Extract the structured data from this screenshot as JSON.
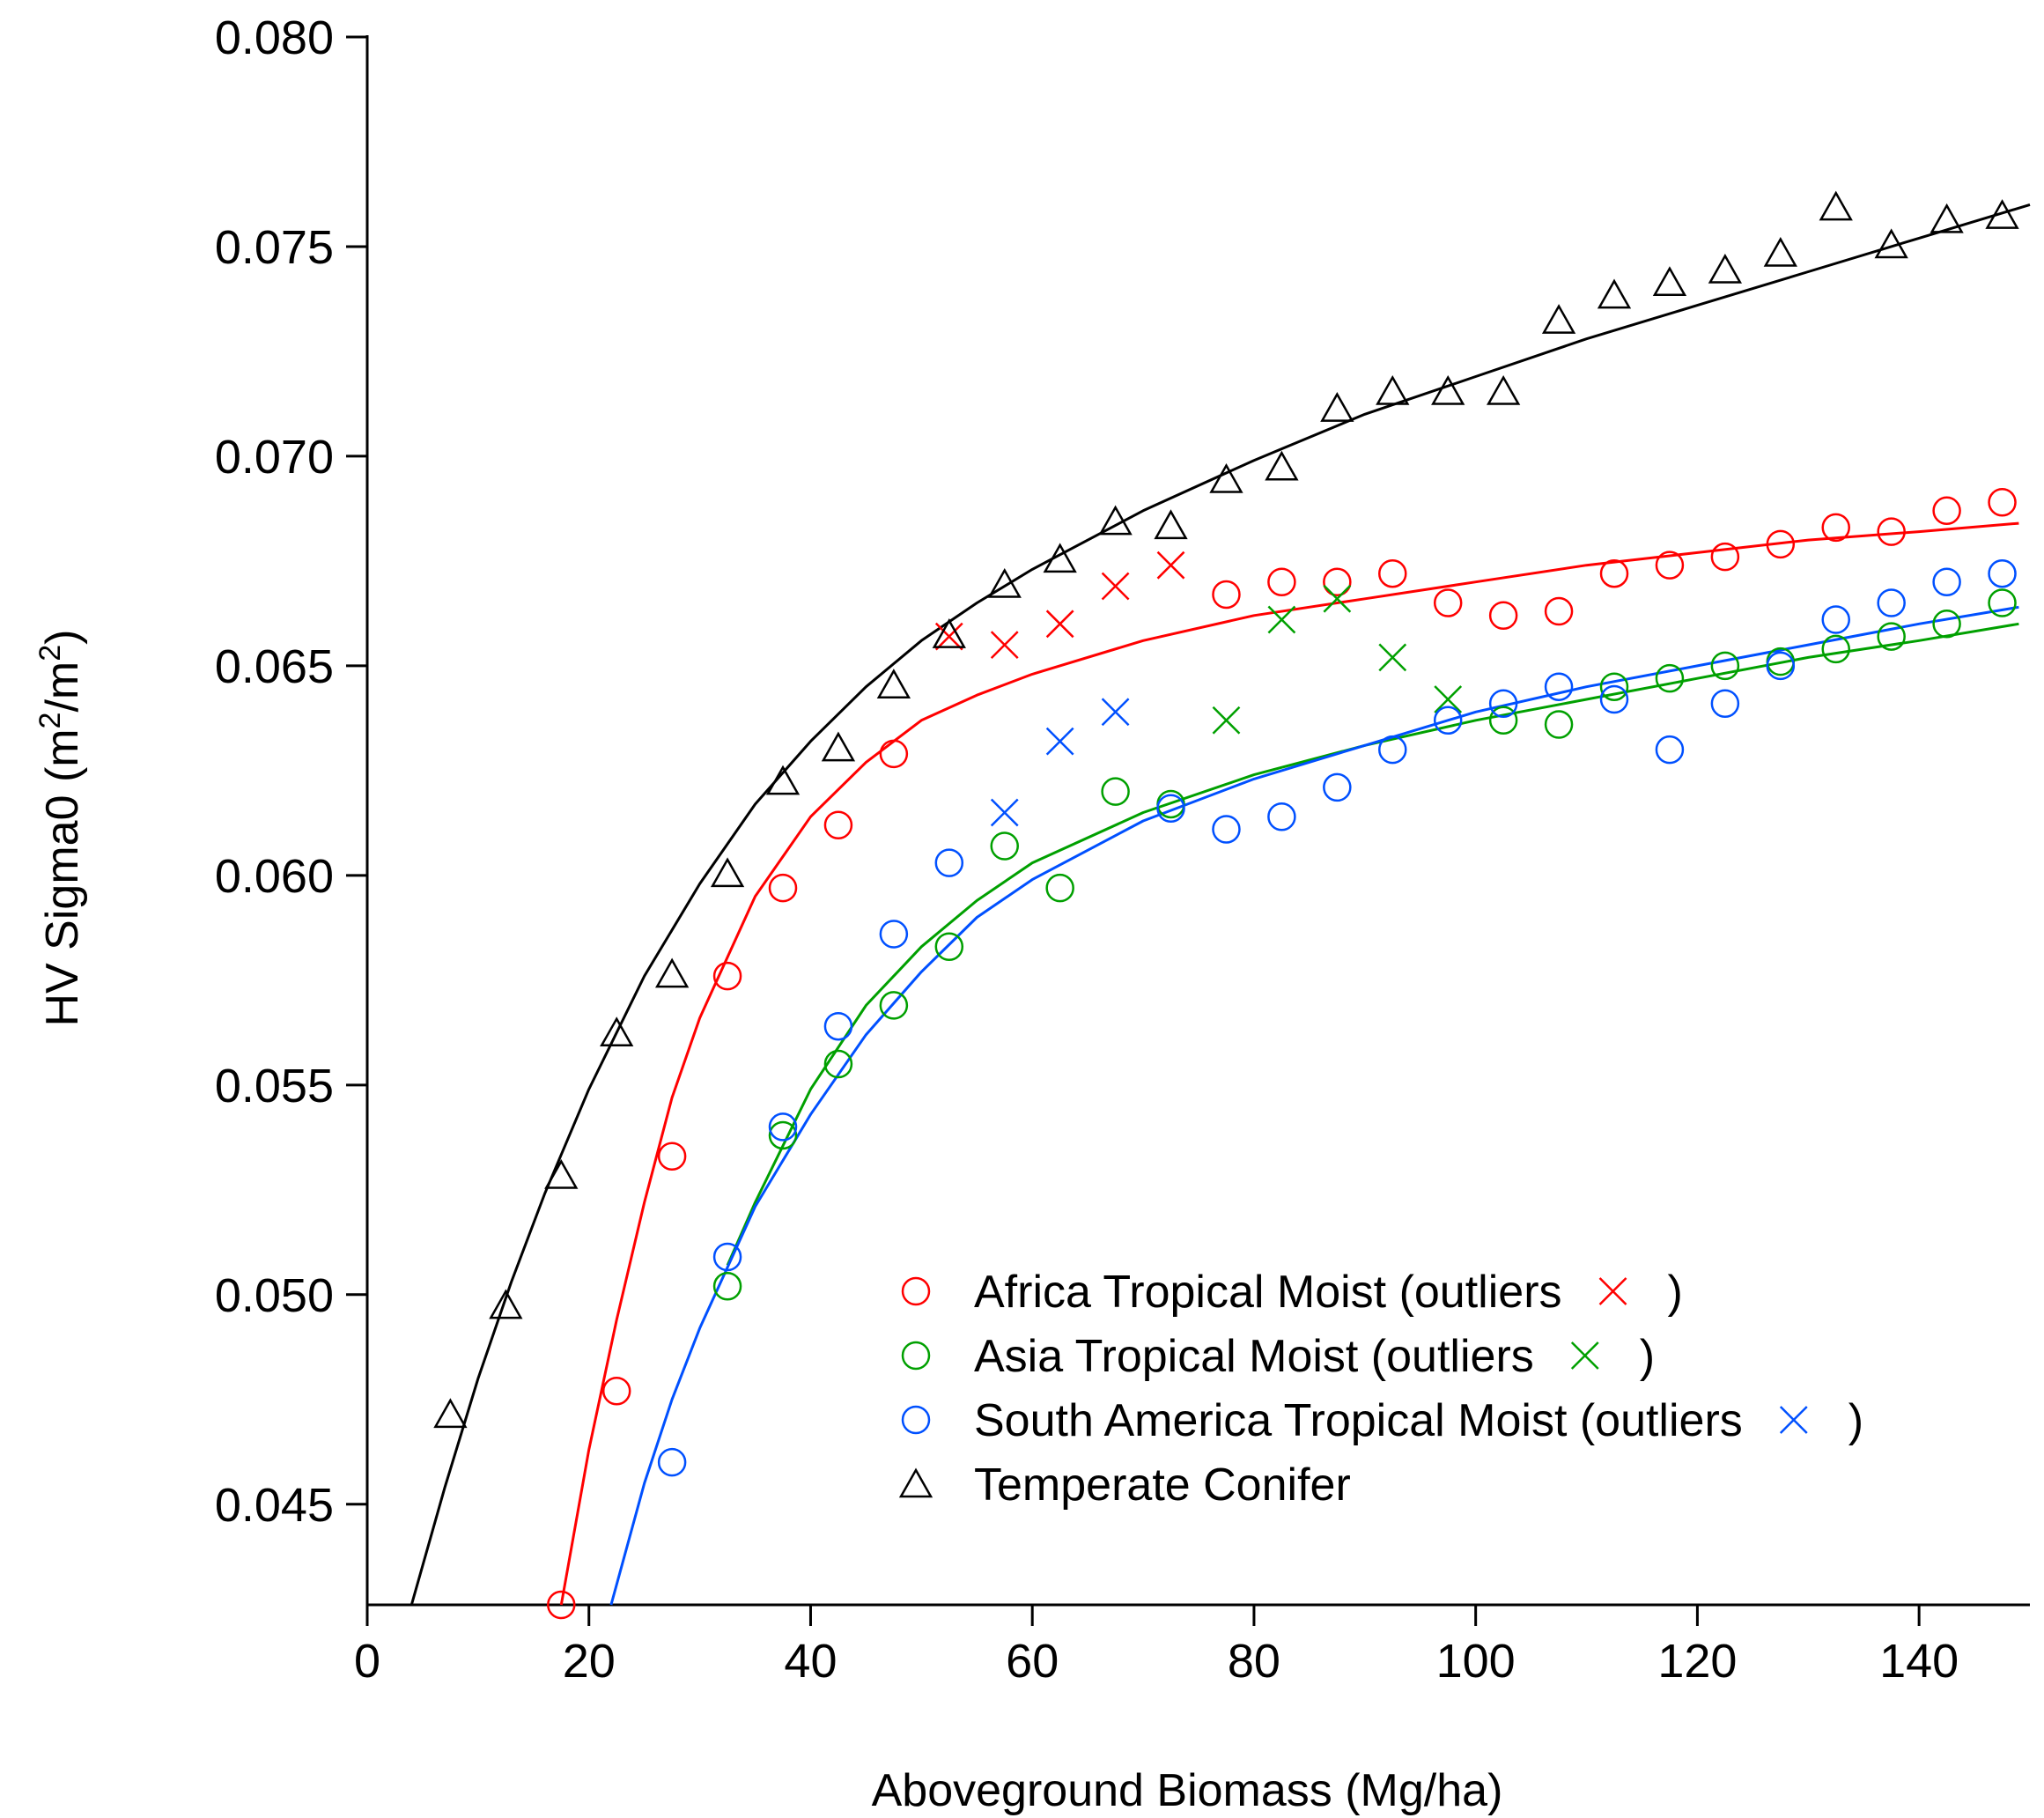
{
  "chart_data": {
    "type": "scatter",
    "xlabel": "Aboveground Biomass (Mg/ha)",
    "ylabel": "HV Sigma0 (m",
    "ylabel_sup": "2",
    "ylabel_mid": "/m",
    "ylabel_end": ")",
    "xlim": [
      0,
      150
    ],
    "ylim": [
      0.0426,
      0.08
    ],
    "x_ticks": [
      0,
      20,
      40,
      60,
      80,
      100,
      120,
      140
    ],
    "x_tick_labels": [
      "0",
      "20",
      "40",
      "60",
      "80",
      "100",
      "120",
      "140"
    ],
    "y_ticks": [
      0.045,
      0.05,
      0.055,
      0.06,
      0.065,
      0.07,
      0.075,
      0.08
    ],
    "y_tick_labels": [
      "0.045",
      "0.050",
      "0.055",
      "0.060",
      "0.065",
      "0.070",
      "0.075",
      "0.080"
    ],
    "grid": false,
    "legend_position": "bottom-right",
    "series": [
      {
        "name": "Africa Tropical Moist (outliers",
        "legend_suffix": ")",
        "color": "#ff0000",
        "marker": "circle",
        "outlier_marker": "x",
        "x": [
          17.5,
          22.5,
          27.5,
          32.5,
          37.5,
          42.5,
          47.5,
          77.5,
          82.5,
          87.5,
          92.5,
          97.5,
          102.5,
          107.5,
          112.5,
          117.5,
          122.5,
          127.5,
          132.5,
          137.5,
          142.5,
          147.5
        ],
        "y": [
          0.0426,
          0.0477,
          0.0533,
          0.0576,
          0.0597,
          0.0612,
          0.0629,
          0.0667,
          0.067,
          0.067,
          0.0672,
          0.0665,
          0.0662,
          0.0663,
          0.0672,
          0.0674,
          0.0676,
          0.0679,
          0.0683,
          0.0682,
          0.0687,
          0.0689
        ],
        "outliers_x": [
          52.5,
          57.5,
          62.5,
          67.5,
          72.5
        ],
        "outliers_y": [
          0.0657,
          0.0655,
          0.066,
          0.0669,
          0.0674
        ],
        "fit_x": [
          17.5,
          20,
          22.5,
          25,
          27.5,
          30,
          35,
          40,
          45,
          50,
          55,
          60,
          70,
          80,
          90,
          100,
          110,
          120,
          130,
          140,
          149
        ],
        "fit_y": [
          0.0426,
          0.0463,
          0.0494,
          0.0522,
          0.0547,
          0.0566,
          0.0595,
          0.0614,
          0.0627,
          0.0637,
          0.0643,
          0.0648,
          0.0656,
          0.0662,
          0.0666,
          0.067,
          0.0674,
          0.0677,
          0.068,
          0.0682,
          0.0684
        ]
      },
      {
        "name": "Asia Tropical Moist (outliers",
        "legend_suffix": ")",
        "color": "#00a000",
        "marker": "circle",
        "outlier_marker": "x",
        "x": [
          32.5,
          37.5,
          42.5,
          47.5,
          52.5,
          57.5,
          62.5,
          67.5,
          72.5,
          102.5,
          107.5,
          112.5,
          117.5,
          122.5,
          127.5,
          132.5,
          137.5,
          142.5,
          147.5
        ],
        "y": [
          0.0502,
          0.0538,
          0.0555,
          0.0569,
          0.0583,
          0.0607,
          0.0597,
          0.062,
          0.0617,
          0.0637,
          0.0636,
          0.0645,
          0.0647,
          0.065,
          0.0651,
          0.0654,
          0.0657,
          0.066,
          0.0665
        ],
        "outliers_x": [
          77.5,
          82.5,
          87.5,
          92.5,
          97.5
        ],
        "outliers_y": [
          0.0637,
          0.0661,
          0.0666,
          0.0652,
          0.0642
        ],
        "fit_x": [
          32.5,
          35,
          40,
          45,
          50,
          55,
          60,
          70,
          80,
          90,
          100,
          110,
          120,
          130,
          140,
          149
        ],
        "fit_y": [
          0.0507,
          0.0522,
          0.0549,
          0.0569,
          0.0583,
          0.0594,
          0.0603,
          0.0615,
          0.0624,
          0.0631,
          0.0637,
          0.0642,
          0.0647,
          0.0652,
          0.0656,
          0.066
        ]
      },
      {
        "name": "South America Tropical Moist (outliers",
        "legend_suffix": ")",
        "color": "#0050ff",
        "marker": "circle",
        "outlier_marker": "x",
        "x": [
          27.5,
          32.5,
          37.5,
          42.5,
          47.5,
          52.5,
          72.5,
          77.5,
          82.5,
          87.5,
          92.5,
          97.5,
          102.5,
          107.5,
          112.5,
          117.5,
          122.5,
          127.5,
          132.5,
          137.5,
          142.5,
          147.5
        ],
        "y": [
          0.046,
          0.0509,
          0.054,
          0.0564,
          0.0586,
          0.0603,
          0.0616,
          0.0611,
          0.0614,
          0.0621,
          0.063,
          0.0637,
          0.0641,
          0.0645,
          0.0642,
          0.063,
          0.0641,
          0.065,
          0.0661,
          0.0665,
          0.067,
          0.0672
        ],
        "outliers_x": [
          57.5,
          62.5,
          67.5
        ],
        "outliers_y": [
          0.0615,
          0.0632,
          0.0639
        ],
        "fit_x": [
          22,
          25,
          27.5,
          30,
          35,
          40,
          45,
          50,
          55,
          60,
          70,
          80,
          90,
          100,
          110,
          120,
          130,
          140,
          149
        ],
        "fit_y": [
          0.0426,
          0.0455,
          0.0475,
          0.0492,
          0.0521,
          0.0543,
          0.0562,
          0.0577,
          0.059,
          0.0599,
          0.0613,
          0.0623,
          0.0631,
          0.0639,
          0.0645,
          0.065,
          0.0655,
          0.066,
          0.0664
        ]
      },
      {
        "name": "Temperate Conifer",
        "legend_suffix": "",
        "color": "#000000",
        "marker": "triangle",
        "x": [
          7.5,
          12.5,
          17.5,
          22.5,
          27.5,
          32.5,
          37.5,
          42.5,
          47.5,
          52.5,
          57.5,
          62.5,
          67.5,
          72.5,
          77.5,
          82.5,
          87.5,
          92.5,
          97.5,
          102.5,
          107.5,
          112.5,
          117.5,
          122.5,
          127.5,
          132.5,
          137.5,
          142.5,
          147.5
        ],
        "y": [
          0.0471,
          0.0497,
          0.0528,
          0.0562,
          0.0576,
          0.06,
          0.0622,
          0.063,
          0.0645,
          0.0657,
          0.0669,
          0.0675,
          0.0684,
          0.0683,
          0.0694,
          0.0697,
          0.0711,
          0.0715,
          0.0715,
          0.0715,
          0.0732,
          0.0738,
          0.0741,
          0.0744,
          0.0748,
          0.0759,
          0.075,
          0.0756,
          0.0757
        ],
        "fit_x": [
          4,
          7,
          10,
          13,
          16,
          20,
          25,
          30,
          35,
          40,
          45,
          50,
          55,
          60,
          70,
          80,
          90,
          100,
          110,
          120,
          130,
          140,
          150
        ],
        "fit_y": [
          0.0426,
          0.0454,
          0.048,
          0.0503,
          0.0524,
          0.0549,
          0.0576,
          0.0598,
          0.0617,
          0.0632,
          0.0645,
          0.0656,
          0.0665,
          0.0673,
          0.0687,
          0.0699,
          0.071,
          0.0719,
          0.0728,
          0.0736,
          0.0744,
          0.0752,
          0.076
        ]
      }
    ]
  }
}
